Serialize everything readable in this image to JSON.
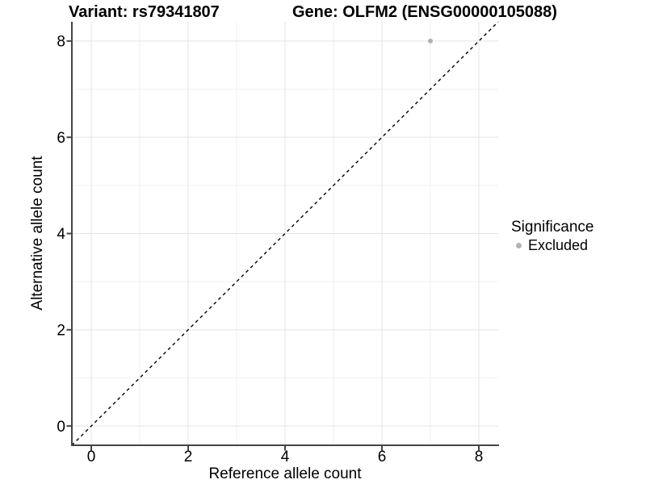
{
  "chart_data": {
    "type": "scatter",
    "title_left": "Variant: rs79341807",
    "title_right": "Gene: OLFM2 (ENSG00000105088)",
    "xlabel": "Reference allele count",
    "ylabel": "Alternative allele count",
    "xlim": [
      -0.4,
      8.4
    ],
    "ylim": [
      -0.4,
      8.4
    ],
    "x_ticks": [
      0,
      2,
      4,
      6,
      8
    ],
    "y_ticks": [
      0,
      2,
      4,
      6,
      8
    ],
    "x_minor_gridlines": [
      1,
      3,
      5,
      7
    ],
    "y_minor_gridlines": [
      1,
      3,
      5,
      7
    ],
    "grid": true,
    "points": [
      {
        "x": 7,
        "y": 8,
        "series": "Excluded"
      }
    ],
    "identity_line": {
      "style": "dashed",
      "from": [
        -0.4,
        -0.4
      ],
      "to": [
        8.4,
        8.4
      ],
      "color": "#000000"
    },
    "legend": {
      "title": "Significance",
      "position": "right",
      "items": [
        {
          "label": "Excluded",
          "color": "#b3b3b3"
        }
      ]
    },
    "style": {
      "background": "#ffffff",
      "point_color": "#b3b3b3",
      "grid_major_color": "#e4e4e4",
      "grid_minor_color": "#f1f1f1",
      "axis_line_color": "#444444",
      "text_color": "#000000"
    }
  }
}
